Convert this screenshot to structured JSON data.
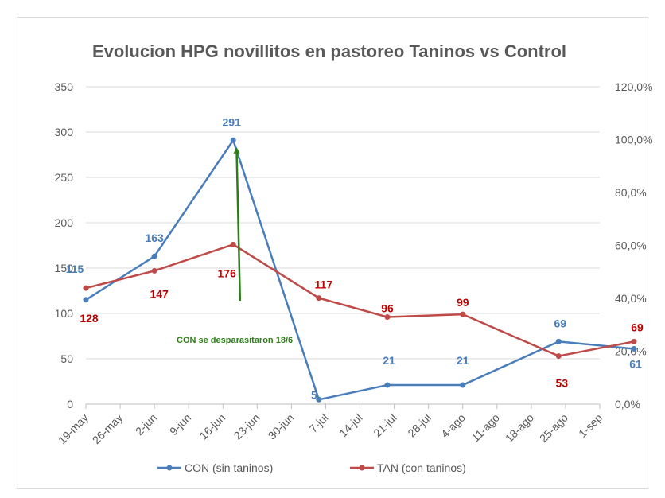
{
  "chart_data": {
    "type": "line",
    "title": "Evolucion HPG novillitos en pastoreo Taninos vs Control",
    "categories": [
      "19-may",
      "26-may",
      "2-jun",
      "9-jun",
      "16-jun",
      "23-jun",
      "30-jun",
      "7-jul",
      "14-jul",
      "21-jul",
      "28-jul",
      "4-ago",
      "11-ago",
      "18-ago",
      "25-ago",
      "1-sep"
    ],
    "ylim": [
      0,
      350
    ],
    "y_ticks": [
      "0",
      "50",
      "100",
      "150",
      "200",
      "250",
      "300",
      "350"
    ],
    "y2lim": [
      0,
      120
    ],
    "y2_ticks": [
      "0,0%",
      "20,0%",
      "40,0%",
      "60,0%",
      "80,0%",
      "100,0%",
      "120,0%"
    ],
    "grid": "horizontal",
    "legend_position": "bottom",
    "series": [
      {
        "name": "CON (sin taninos)",
        "color": "#4a7ebb",
        "label_color": "#4a7ebb",
        "points": [
          {
            "x": 0,
            "y": 115
          },
          {
            "x": 2,
            "y": 163
          },
          {
            "x": 4.3,
            "y": 291
          },
          {
            "x": 6.8,
            "y": 5
          },
          {
            "x": 8.8,
            "y": 21
          },
          {
            "x": 11,
            "y": 21
          },
          {
            "x": 13.8,
            "y": 69
          },
          {
            "x": 16,
            "y": 61
          }
        ]
      },
      {
        "name": "TAN (con taninos)",
        "color": "#be4b48",
        "label_color": "#c00000",
        "points": [
          {
            "x": 0,
            "y": 128
          },
          {
            "x": 2,
            "y": 147
          },
          {
            "x": 4.3,
            "y": 176
          },
          {
            "x": 6.8,
            "y": 117
          },
          {
            "x": 8.8,
            "y": 96
          },
          {
            "x": 11,
            "y": 99
          },
          {
            "x": 13.8,
            "y": 53
          },
          {
            "x": 16,
            "y": 69
          }
        ]
      }
    ],
    "annotation": {
      "text": "CON se desparasitaron 18/6",
      "color": "#2e7d1a",
      "arrow_from": {
        "x": 4.5,
        "y": 114
      },
      "arrow_to": {
        "x": 4.4,
        "y": 280
      }
    }
  }
}
